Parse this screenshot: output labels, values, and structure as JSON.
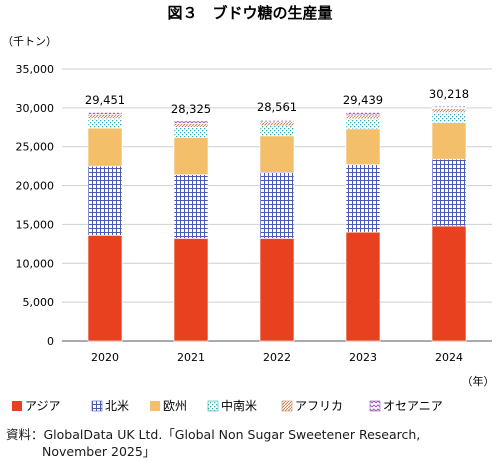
{
  "chart_data": {
    "type": "bar",
    "stacked": true,
    "title": "図３　ブドウ糖の生産量",
    "ylabel": "（千トン）",
    "xlabel": "（年）",
    "ylim": [
      0,
      35000
    ],
    "yticks": [
      0,
      5000,
      10000,
      15000,
      20000,
      25000,
      30000,
      35000
    ],
    "ytick_labels": [
      "0",
      "5,000",
      "10,000",
      "15,000",
      "20,000",
      "25,000",
      "30,000",
      "35,000"
    ],
    "categories": [
      "2020",
      "2021",
      "2022",
      "2023",
      "2024"
    ],
    "totals": [
      29451,
      28325,
      28561,
      29439,
      30218
    ],
    "total_labels": [
      "29,451",
      "28,325",
      "28,561",
      "29,439",
      "30,218"
    ],
    "grid": true,
    "legend_position": "bottom",
    "series": [
      {
        "name": "アジア",
        "color": "#e8411f",
        "pattern": "solid",
        "values": [
          13600,
          13200,
          13200,
          14000,
          14800
        ]
      },
      {
        "name": "北米",
        "color": "#4a5bb5",
        "pattern": "grid",
        "values": [
          8900,
          8200,
          8500,
          8700,
          8600
        ]
      },
      {
        "name": "欧州",
        "color": "#f3bf6a",
        "pattern": "solid",
        "values": [
          4900,
          4800,
          4700,
          4600,
          4700
        ]
      },
      {
        "name": "中南米",
        "color": "#3aa8b0",
        "pattern": "dots",
        "values": [
          1250,
          1300,
          1300,
          1300,
          1300
        ]
      },
      {
        "name": "アフリカ",
        "color": "#c98a5e",
        "pattern": "diagonal",
        "values": [
          500,
          500,
          500,
          500,
          500
        ]
      },
      {
        "name": "オセアニア",
        "color": "#9a5fb5",
        "pattern": "zigzag",
        "values": [
          301,
          325,
          361,
          339,
          318
        ]
      }
    ]
  },
  "source": {
    "line1": "資料：GlobalData UK Ltd.「Global Non Sugar Sweetener Research,",
    "line2": "November 2025」"
  }
}
